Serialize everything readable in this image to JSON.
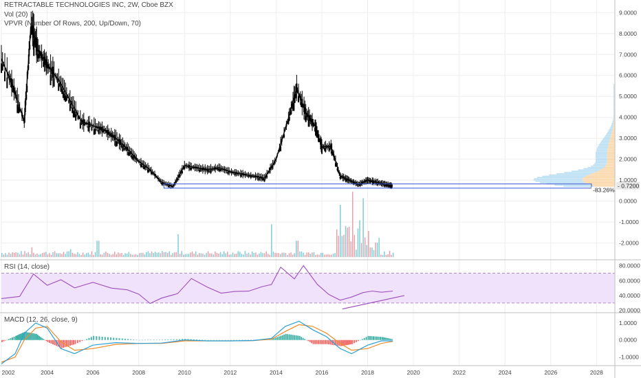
{
  "header": {
    "title": "RETRACTABLE TECHNOLOGIES INC, 2W, Cboe BZX",
    "vol": "Vol (20)",
    "vpvr": "VPVR (Number Of Rows, 200, Up/Down, 70)",
    "rsi": "RSI (14, close)",
    "macd": "MACD (12, 26, close, 9)"
  },
  "colors": {
    "candle": "#000000",
    "vol_up": "#7fcdd6",
    "vol_down": "#e8a0a8",
    "rsi_line": "#9c4fbf",
    "rsi_band": "#f1e2fb",
    "macd_line": "#2b9fd8",
    "signal_line": "#f08a28",
    "hist_up": "#26a69a",
    "hist_down": "#ef5350",
    "vpvr_up": "#b3dcf2",
    "vpvr_down": "#fbd3a0",
    "trendline": "#9c4fbf",
    "range_box": "#3d55d6",
    "price_tag": "#e8e8e8"
  },
  "chart_data": [
    {
      "type": "candlestick",
      "panel": "price",
      "x_ticks": [
        "2002",
        "2004",
        "2006",
        "2008",
        "2010",
        "2012",
        "2014",
        "2016",
        "2018",
        "2020",
        "2022",
        "2024",
        "2026",
        "2028"
      ],
      "y_ticks": [
        "9.0000",
        "8.0000",
        "7.0000",
        "6.0000",
        "5.0000",
        "4.0000",
        "3.0000",
        "2.0000",
        "1.0000",
        "0.0000",
        "-1.0000",
        "-2.0000"
      ],
      "ylim": [
        -2.8,
        9.6
      ],
      "xlim": [
        2002.0,
        2028.8
      ],
      "x": [
        2002.0,
        2002.5,
        2003.0,
        2003.3,
        2003.6,
        2004.0,
        2004.5,
        2005.0,
        2005.5,
        2006.0,
        2006.5,
        2007.0,
        2007.5,
        2008.0,
        2008.5,
        2009.0,
        2009.5,
        2010.0,
        2010.5,
        2011.0,
        2011.5,
        2012.0,
        2012.5,
        2013.0,
        2013.5,
        2014.0,
        2014.5,
        2014.9,
        2015.3,
        2015.7,
        2016.0,
        2016.4,
        2016.8,
        2017.2,
        2017.6,
        2018.0,
        2018.4,
        2018.8,
        2019.1
      ],
      "values": [
        6.8,
        5.5,
        3.8,
        8.5,
        7.2,
        6.5,
        5.8,
        4.8,
        3.8,
        3.6,
        3.4,
        3.0,
        2.5,
        1.9,
        1.5,
        0.9,
        0.7,
        1.7,
        1.6,
        1.5,
        1.6,
        1.4,
        1.3,
        1.2,
        1.1,
        2.0,
        3.8,
        5.4,
        4.2,
        3.6,
        2.6,
        2.6,
        1.2,
        1.0,
        0.8,
        1.0,
        0.9,
        0.8,
        0.72
      ],
      "last_price_label": "0.7200",
      "range_label": "-83.26%",
      "range_low": 0.62,
      "range_high": 0.82
    },
    {
      "type": "bar",
      "panel": "volume",
      "x_ticks": [
        "2002",
        "2004",
        "2006",
        "2008",
        "2010",
        "2012",
        "2014",
        "2016",
        "2018",
        "2020",
        "2022",
        "2024",
        "2026",
        "2028"
      ],
      "spikes_x": [
        2003.3,
        2005.0,
        2006.2,
        2009.7,
        2013.8,
        2014.9,
        2016.8,
        2017.3,
        2017.8,
        2018.0
      ],
      "spikes_value": [
        0.15,
        0.12,
        0.25,
        0.35,
        0.5,
        0.25,
        0.8,
        1.0,
        0.9,
        0.4
      ]
    },
    {
      "type": "line",
      "panel": "rsi",
      "y_ticks": [
        "80.0000",
        "60.0000",
        "40.0000",
        "20.0000"
      ],
      "ylim": [
        17,
        88
      ],
      "band": [
        30,
        70
      ],
      "x": [
        2002.0,
        2002.8,
        2003.4,
        2004.0,
        2004.6,
        2005.2,
        2006.0,
        2006.8,
        2007.5,
        2008.0,
        2008.5,
        2009.0,
        2009.7,
        2010.3,
        2011.0,
        2011.6,
        2012.2,
        2012.8,
        2013.4,
        2013.8,
        2014.2,
        2014.8,
        2015.2,
        2015.8,
        2016.3,
        2016.8,
        2017.3,
        2017.8,
        2018.2,
        2018.6,
        2019.1
      ],
      "values": [
        36,
        35,
        70,
        52,
        58,
        50,
        55,
        52,
        47,
        38,
        30,
        33,
        42,
        60,
        55,
        47,
        42,
        48,
        50,
        58,
        82,
        65,
        78,
        53,
        40,
        35,
        35,
        42,
        48,
        42,
        46
      ],
      "trendline_start": [
        2016.9,
        22
      ],
      "trendline_end": [
        2019.6,
        40
      ]
    },
    {
      "type": "line",
      "panel": "macd",
      "y_ticks": [
        "1.0000",
        "0.0000",
        "-1.0000"
      ],
      "ylim": [
        -1.5,
        1.6
      ],
      "x": [
        2002.0,
        2002.6,
        2003.0,
        2003.5,
        2004.0,
        2004.6,
        2005.2,
        2006.0,
        2007.0,
        2008.0,
        2009.0,
        2010.0,
        2011.0,
        2012.0,
        2013.0,
        2013.8,
        2014.4,
        2015.0,
        2015.6,
        2016.2,
        2016.8,
        2017.3,
        2018.0,
        2018.6,
        2019.1
      ],
      "values": [
        -1.4,
        -0.8,
        0.4,
        1.0,
        0.7,
        -0.5,
        -0.8,
        -0.3,
        -0.15,
        -0.2,
        -0.18,
        0.0,
        -0.05,
        -0.05,
        -0.03,
        0.1,
        0.8,
        1.1,
        0.6,
        0.2,
        -0.5,
        -0.8,
        -0.3,
        -0.05,
        -0.05
      ],
      "signal": [
        -1.3,
        -1.0,
        0.0,
        0.7,
        0.8,
        -0.1,
        -0.6,
        -0.5,
        -0.25,
        -0.2,
        -0.2,
        -0.05,
        -0.05,
        -0.05,
        -0.04,
        0.05,
        0.5,
        0.9,
        0.8,
        0.4,
        -0.2,
        -0.6,
        -0.5,
        -0.2,
        -0.08
      ]
    }
  ]
}
